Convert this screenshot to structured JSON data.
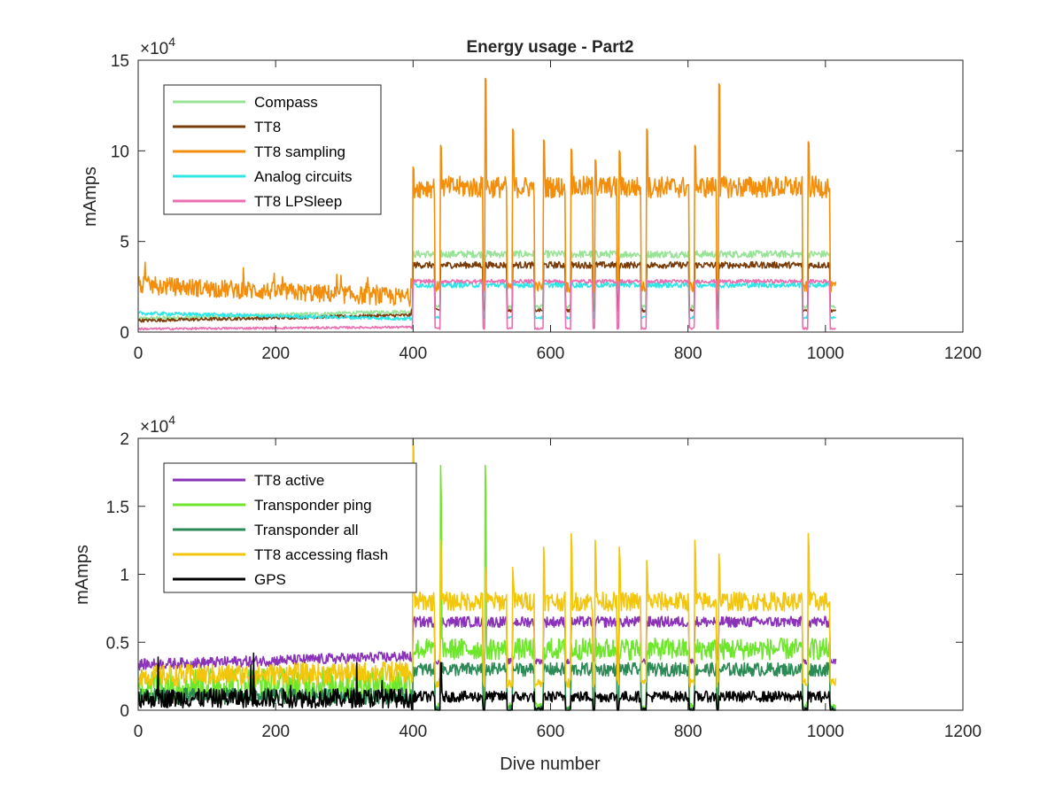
{
  "figure": {
    "title": "Energy usage - Part2"
  },
  "chart_data": [
    {
      "type": "line",
      "title": "Energy usage - Part2",
      "xlabel": "",
      "ylabel": "mAmps",
      "exponent": "×10",
      "exponent_power": "4",
      "xlim": [
        0,
        1200
      ],
      "ylim": [
        0,
        150000
      ],
      "xticks": [
        0,
        200,
        400,
        600,
        800,
        1000,
        1200
      ],
      "yticks": [
        0,
        50000,
        100000,
        150000
      ],
      "ytick_labels": [
        "0",
        "5",
        "10",
        "15"
      ],
      "xtick_labels": [
        "0",
        "200",
        "400",
        "600",
        "800",
        "1000",
        "1200"
      ],
      "grid": false,
      "legend_position": "top-left",
      "x_range": [
        1,
        1015
      ],
      "series": [
        {
          "name": "Compass",
          "color": "#98e398",
          "base_pre": [
            7000,
            11000
          ],
          "noise_pre": 1000,
          "high_post": 43000,
          "low_post": 14000,
          "noise_post": 2000,
          "peak_values": []
        },
        {
          "name": "TT8",
          "color": "#7a3d0a",
          "base_pre": [
            6000,
            9000
          ],
          "noise_pre": 900,
          "high_post": 37000,
          "low_post": 12000,
          "noise_post": 1800,
          "peak_values": []
        },
        {
          "name": "TT8 sampling",
          "color": "#f28e0c",
          "base_pre": [
            24000,
            17000
          ],
          "noise_pre": 5000,
          "high_post": 80000,
          "low_post": 25000,
          "noise_post": 6000,
          "peak_values": [
            91000,
            103000,
            123000,
            140000,
            112000,
            106000,
            101000,
            95000,
            100000,
            112000,
            110000,
            103000,
            137000,
            120000,
            116000,
            93000,
            105000
          ]
        },
        {
          "name": "Analog circuits",
          "color": "#2fe6e6",
          "base_pre": [
            10000,
            7000
          ],
          "noise_pre": 1000,
          "high_post": 26000,
          "low_post": 8000,
          "noise_post": 1500,
          "peak_values": []
        },
        {
          "name": "TT8 LPSleep",
          "color": "#ea6fb0",
          "base_pre": [
            1500,
            2500
          ],
          "noise_pre": 600,
          "high_post": 28000,
          "low_post": 2000,
          "noise_post": 1000,
          "peak_values": []
        }
      ]
    },
    {
      "type": "line",
      "title": "",
      "xlabel": "Dive number",
      "ylabel": "mAmps",
      "exponent": "×10",
      "exponent_power": "4",
      "xlim": [
        0,
        1200
      ],
      "ylim": [
        0,
        20000
      ],
      "xticks": [
        0,
        200,
        400,
        600,
        800,
        1000,
        1200
      ],
      "yticks": [
        0,
        5000,
        10000,
        15000,
        20000
      ],
      "ytick_labels": [
        "0",
        "0.5",
        "1",
        "1.5",
        "2"
      ],
      "xtick_labels": [
        "0",
        "200",
        "400",
        "600",
        "800",
        "1000",
        "1200"
      ],
      "grid": false,
      "legend_position": "top-left",
      "x_range": [
        1,
        1015
      ],
      "series": [
        {
          "name": "TT8 active",
          "color": "#8a33b8",
          "base_pre": [
            3200,
            3800
          ],
          "noise_pre": 400,
          "high_post": 6500,
          "low_post": 3600,
          "noise_post": 400,
          "peak_values": []
        },
        {
          "name": "Transponder ping",
          "color": "#6ee62b",
          "base_pre": [
            1500,
            1500
          ],
          "noise_pre": 1200,
          "high_post": 4500,
          "low_post": 200,
          "noise_post": 800,
          "peak_values": [
            18000,
            18000,
            18000
          ]
        },
        {
          "name": "Transponder all",
          "color": "#2b8a55",
          "base_pre": [
            800,
            800
          ],
          "noise_pre": 600,
          "high_post": 3000,
          "low_post": 100,
          "noise_post": 500,
          "peak_values": []
        },
        {
          "name": "TT8 accessing flash",
          "color": "#f2c60c",
          "base_pre": [
            2200,
            2500
          ],
          "noise_pre": 800,
          "high_post": 8000,
          "low_post": 2000,
          "noise_post": 700,
          "peak_values": [
            20000,
            12500,
            11500,
            10500,
            10500,
            12000,
            13000,
            12500,
            12000,
            11000
          ]
        },
        {
          "name": "GPS",
          "color": "#000000",
          "base_pre": [
            600,
            600
          ],
          "noise_pre": 700,
          "high_post": 1000,
          "low_post": 0,
          "noise_post": 400,
          "peak_values": [
            3500,
            7000
          ]
        }
      ]
    }
  ]
}
